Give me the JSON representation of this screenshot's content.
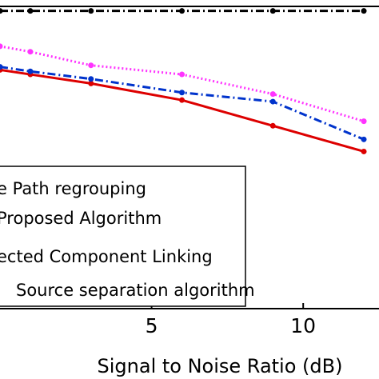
{
  "chart_data": {
    "type": "line",
    "xlabel": "Signal to Noise Ratio (dB)",
    "ylabel": "",
    "xlim": [
      0,
      12
    ],
    "ylim": [
      0,
      1
    ],
    "x_ticks": [
      5,
      10
    ],
    "grid": false,
    "legend_placement": "lower-left",
    "series": [
      {
        "name": "...e Path regrouping",
        "color": "#000000",
        "style": "dash-dot",
        "x": [
          0,
          1,
          3,
          6,
          9,
          12
        ],
        "y": [
          0.985,
          0.985,
          0.985,
          0.985,
          0.985,
          0.985
        ]
      },
      {
        "name": "Proposed Algorithm",
        "color": "#dd0000",
        "style": "solid",
        "x": [
          0,
          1,
          3,
          6,
          9,
          12
        ],
        "y": [
          0.79,
          0.775,
          0.745,
          0.69,
          0.605,
          0.52
        ]
      },
      {
        "name": "...ected Component Linking",
        "color": "#0033cc",
        "style": "dash-dot",
        "x": [
          0,
          1,
          3,
          6,
          9,
          12
        ],
        "y": [
          0.8,
          0.785,
          0.76,
          0.715,
          0.685,
          0.56
        ]
      },
      {
        "name": "Source separation algorithm",
        "color": "#ff33ff",
        "style": "dotted",
        "x": [
          0,
          1,
          3,
          6,
          9,
          12
        ],
        "y": [
          0.868,
          0.85,
          0.805,
          0.775,
          0.71,
          0.62
        ]
      }
    ]
  }
}
